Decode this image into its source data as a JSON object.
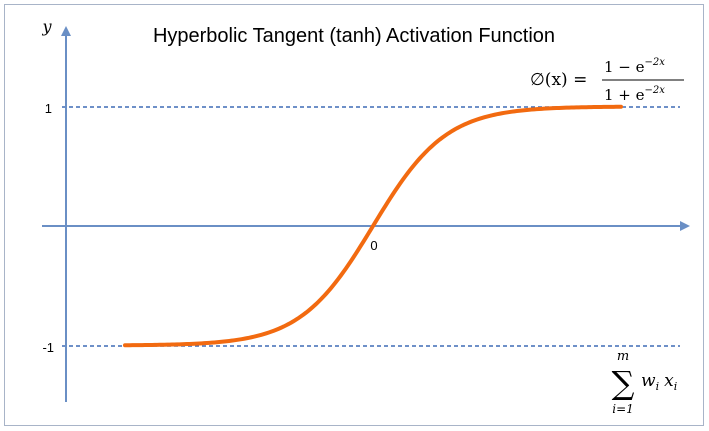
{
  "chart_data": {
    "type": "line",
    "title": "Hyperbolic Tangent (tanh) Activation Function",
    "function": "tanh",
    "x_range": [
      -3.4,
      3.4
    ],
    "y_ticks": [
      {
        "value": 1,
        "label": "1"
      },
      {
        "value": -1,
        "label": "-1"
      }
    ],
    "origin_label": "0",
    "y_axis_label": "y",
    "x_axis_label": {
      "sum_symbol": "∑",
      "upper_limit": "m",
      "lower_limit": "i=1",
      "term_w": "w",
      "term_w_sub": "i",
      "term_x": "x",
      "term_x_sub": "i"
    },
    "formula": {
      "lhs": "∅(x) =",
      "numerator": "1 −  e",
      "numerator_exp": "−2x",
      "denominator": "1 +  e",
      "denominator_exp": "−2x"
    },
    "colors": {
      "curve": "#f26a10",
      "axis": "#6a8fc5",
      "asymptote": "#3f6bb5",
      "frame": "#a8b4c8"
    }
  }
}
